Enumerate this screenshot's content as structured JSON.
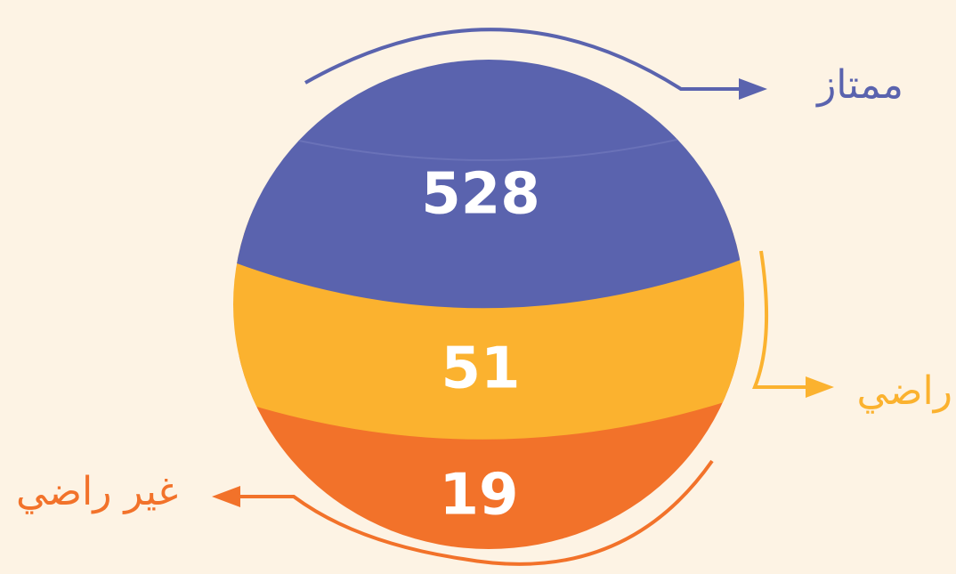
{
  "segments": [
    {
      "label": "ممتاز",
      "value": 528,
      "color": "#5a63ae"
    },
    {
      "label": "راضي",
      "value": 51,
      "color": "#fbb22f"
    },
    {
      "label": "غير راضي",
      "value": 19,
      "color": "#f2722a"
    }
  ]
}
